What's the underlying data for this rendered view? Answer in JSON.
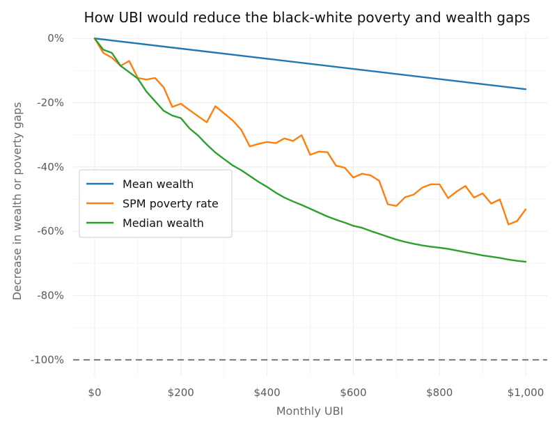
{
  "chart_data": {
    "type": "line",
    "title": "How UBI would reduce the black-white poverty and wealth gaps",
    "xlabel": "Monthly UBI",
    "ylabel": "Decrease in wealth or poverty gaps",
    "xlim": [
      -50,
      1050
    ],
    "ylim": [
      -105,
      2
    ],
    "x_ticks": [
      0,
      200,
      400,
      600,
      800,
      1000
    ],
    "x_tick_labels": [
      "$0",
      "$200",
      "$400",
      "$600",
      "$800",
      "$1,000"
    ],
    "y_ticks": [
      0,
      -20,
      -40,
      -60,
      -80,
      -100
    ],
    "y_tick_labels": [
      "0%",
      "-20%",
      "-40%",
      "-60%",
      "-80%",
      "-100%"
    ],
    "grid": true,
    "legend_position": "center-left",
    "reference_line": {
      "y": -100,
      "style": "dashed",
      "color": "#7f7f7f"
    },
    "series": [
      {
        "name": "Mean wealth",
        "color": "#1f77b4",
        "x": [
          0,
          1000
        ],
        "values": [
          0,
          -15.8
        ]
      },
      {
        "name": "SPM poverty rate",
        "color": "#ff7f0e",
        "x": [
          0,
          20,
          40,
          60,
          80,
          100,
          120,
          140,
          160,
          180,
          200,
          220,
          240,
          260,
          280,
          300,
          320,
          340,
          360,
          380,
          400,
          420,
          440,
          460,
          480,
          500,
          520,
          540,
          560,
          580,
          600,
          620,
          640,
          660,
          680,
          700,
          720,
          740,
          760,
          780,
          800,
          820,
          840,
          860,
          880,
          900,
          920,
          940,
          960,
          980,
          1000
        ],
        "values": [
          0,
          -4.5,
          -6,
          -8.5,
          -7,
          -12.3,
          -12.8,
          -12.3,
          -15.2,
          -21.3,
          -20.3,
          -22.3,
          -24.2,
          -26.1,
          -21.1,
          -23.3,
          -25.5,
          -28.4,
          -33.6,
          -32.8,
          -32.2,
          -32.6,
          -31.1,
          -31.9,
          -30.1,
          -36.2,
          -35.2,
          -35.4,
          -39.6,
          -40.2,
          -43.3,
          -42.1,
          -42.6,
          -44.3,
          -51.6,
          -52.1,
          -49.4,
          -48.6,
          -46.4,
          -45.4,
          -45.4,
          -49.7,
          -47.6,
          -45.9,
          -49.5,
          -48.2,
          -51.4,
          -50.1,
          -57.9,
          -56.8,
          -53.2
        ]
      },
      {
        "name": "Median wealth",
        "color": "#2ca02c",
        "x": [
          0,
          20,
          40,
          60,
          80,
          100,
          120,
          140,
          160,
          180,
          200,
          220,
          240,
          260,
          280,
          300,
          320,
          340,
          360,
          380,
          400,
          420,
          440,
          460,
          480,
          500,
          520,
          540,
          560,
          580,
          600,
          620,
          640,
          660,
          680,
          700,
          720,
          740,
          760,
          780,
          800,
          820,
          840,
          860,
          880,
          900,
          920,
          940,
          960,
          980,
          1000
        ],
        "values": [
          0,
          -3.5,
          -4.5,
          -8.5,
          -10.5,
          -12.5,
          -16.5,
          -19.5,
          -22.5,
          -24,
          -24.8,
          -28,
          -30.2,
          -33,
          -35.5,
          -37.5,
          -39.5,
          -41,
          -42.8,
          -44.6,
          -46.2,
          -48,
          -49.5,
          -50.7,
          -51.8,
          -53,
          -54.2,
          -55.4,
          -56.4,
          -57.3,
          -58.3,
          -58.9,
          -59.9,
          -60.8,
          -61.7,
          -62.6,
          -63.3,
          -63.9,
          -64.4,
          -64.8,
          -65.1,
          -65.5,
          -66,
          -66.5,
          -67,
          -67.5,
          -67.9,
          -68.3,
          -68.8,
          -69.2,
          -69.5
        ]
      }
    ]
  }
}
